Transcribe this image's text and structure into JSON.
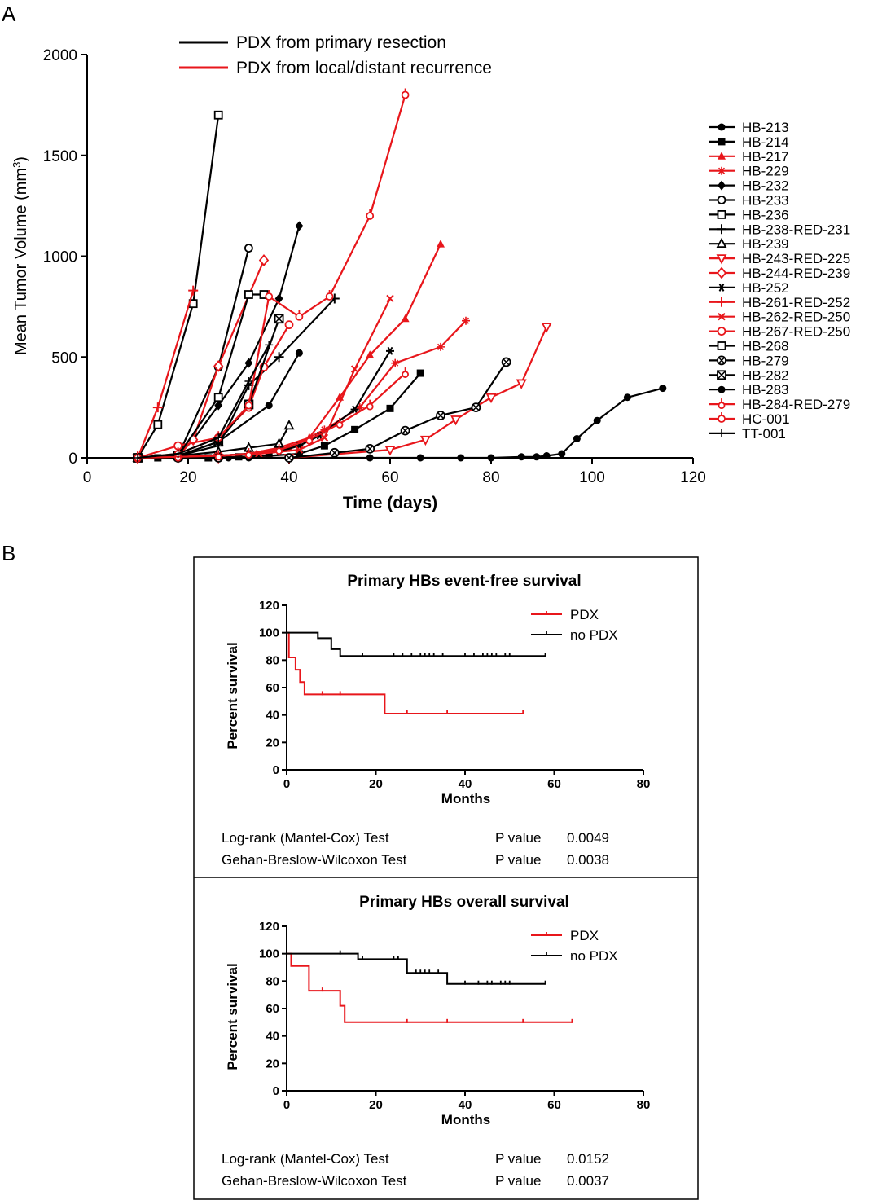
{
  "figure": {
    "panel_a_letter": "A",
    "panel_b_letter": "B"
  },
  "colors": {
    "black": "#000000",
    "red": "#e8161b"
  },
  "chart_data": [
    {
      "type": "line",
      "panel": "A",
      "xlabel": "Time (days)",
      "ylabel": "Mean Tumor Volume (mm3)",
      "ylabel_main": "Mean Tumor Volume (mm",
      "ylabel_sup": "3",
      "ylabel_close": ")",
      "xlim": [
        0,
        120
      ],
      "ylim": [
        0,
        2000
      ],
      "xticks": [
        "0",
        "20",
        "40",
        "60",
        "80",
        "100",
        "120"
      ],
      "yticks": [
        "0",
        "500",
        "1000",
        "1500",
        "2000"
      ],
      "legend_groups": [
        {
          "label": "PDX from primary resection",
          "color": "#000000"
        },
        {
          "label": "PDX from local/distant recurrence",
          "color": "#e8161b"
        }
      ],
      "series": [
        {
          "name": "HB-213",
          "color": "#000000",
          "marker": "circle-filled",
          "x": [
            10,
            14,
            18,
            24,
            28,
            32,
            40,
            56,
            66,
            74,
            80,
            86,
            89,
            91,
            94,
            97,
            101,
            107,
            114
          ],
          "y": [
            0,
            0,
            0,
            0,
            0,
            0,
            0,
            0,
            0,
            0,
            0,
            5,
            5,
            10,
            20,
            95,
            185,
            300,
            345
          ]
        },
        {
          "name": "HB-214",
          "color": "#000000",
          "marker": "square-filled",
          "x": [
            10,
            14,
            18,
            24,
            30,
            36,
            42,
            47,
            53,
            60,
            66
          ],
          "y": [
            0,
            0,
            0,
            0,
            5,
            10,
            20,
            60,
            140,
            245,
            420
          ]
        },
        {
          "name": "HB-217",
          "color": "#e8161b",
          "marker": "triangle-filled",
          "x": [
            10,
            18,
            26,
            32,
            38,
            44,
            50,
            56,
            63,
            70
          ],
          "y": [
            0,
            5,
            10,
            20,
            50,
            100,
            300,
            510,
            690,
            1060
          ]
        },
        {
          "name": "HB-229",
          "color": "#e8161b",
          "marker": "star",
          "x": [
            10,
            18,
            26,
            32,
            40,
            47,
            54,
            61,
            70,
            75
          ],
          "y": [
            0,
            5,
            10,
            20,
            50,
            140,
            250,
            470,
            550,
            680
          ]
        },
        {
          "name": "HB-232",
          "color": "#000000",
          "marker": "diamond-filled",
          "x": [
            10,
            18,
            21,
            26,
            32,
            38,
            42
          ],
          "y": [
            0,
            10,
            90,
            260,
            470,
            790,
            1150
          ]
        },
        {
          "name": "HB-233",
          "color": "#000000",
          "marker": "circle-open",
          "x": [
            10,
            18,
            26,
            32
          ],
          "y": [
            0,
            10,
            450,
            1040
          ]
        },
        {
          "name": "HB-236",
          "color": "#000000",
          "marker": "square-open",
          "x": [
            10,
            14,
            21,
            26
          ],
          "y": [
            0,
            165,
            765,
            1700
          ]
        },
        {
          "name": "HB-238-RED-231",
          "color": "#000000",
          "marker": "plus",
          "x": [
            10,
            18,
            26,
            32,
            38,
            49
          ],
          "y": [
            0,
            10,
            60,
            360,
            500,
            790
          ]
        },
        {
          "name": "HB-239",
          "color": "#000000",
          "marker": "triangle-open",
          "x": [
            10,
            18,
            26,
            32,
            38,
            40
          ],
          "y": [
            0,
            10,
            30,
            50,
            70,
            160
          ]
        },
        {
          "name": "HB-243-RED-225",
          "color": "#e8161b",
          "marker": "triangle-down-open",
          "x": [
            10,
            18,
            26,
            40,
            60,
            67,
            73,
            80,
            86,
            91
          ],
          "y": [
            0,
            0,
            0,
            0,
            40,
            90,
            190,
            300,
            370,
            650
          ]
        },
        {
          "name": "HB-244-RED-239",
          "color": "#e8161b",
          "marker": "diamond-open",
          "x": [
            10,
            18,
            21,
            26,
            35
          ],
          "y": [
            0,
            10,
            90,
            455,
            980
          ]
        },
        {
          "name": "HB-252",
          "color": "#000000",
          "marker": "asterisk",
          "x": [
            10,
            18,
            26,
            32,
            38,
            42,
            46,
            53,
            60
          ],
          "y": [
            0,
            5,
            10,
            20,
            30,
            60,
            110,
            240,
            530
          ]
        },
        {
          "name": "HB-261-RED-252",
          "color": "#e8161b",
          "marker": "plus",
          "x": [
            10,
            14,
            21
          ],
          "y": [
            0,
            250,
            830
          ]
        },
        {
          "name": "HB-262-RED-250",
          "color": "#e8161b",
          "marker": "x",
          "x": [
            10,
            18,
            26,
            34,
            42,
            47,
            53,
            60
          ],
          "y": [
            0,
            5,
            10,
            20,
            40,
            100,
            440,
            790
          ]
        },
        {
          "name": "HB-267-RED-250",
          "color": "#e8161b",
          "marker": "circle-open",
          "x": [
            10,
            18,
            26,
            32,
            35,
            40
          ],
          "y": [
            0,
            60,
            100,
            250,
            450,
            660
          ]
        },
        {
          "name": "HB-268",
          "color": "#000000",
          "marker": "square-open",
          "x": [
            10,
            18,
            26,
            32,
            35
          ],
          "y": [
            0,
            10,
            300,
            810,
            810
          ]
        },
        {
          "name": "HB-279",
          "color": "#000000",
          "marker": "circle-cross",
          "x": [
            10,
            18,
            26,
            40,
            49,
            56,
            63,
            70,
            77,
            83
          ],
          "y": [
            0,
            0,
            0,
            0,
            25,
            45,
            135,
            210,
            250,
            475
          ]
        },
        {
          "name": "HB-282",
          "color": "#000000",
          "marker": "square-cross",
          "x": [
            10,
            18,
            26,
            32,
            38
          ],
          "y": [
            0,
            10,
            80,
            265,
            690
          ]
        },
        {
          "name": "HB-283",
          "color": "#000000",
          "marker": "circle-filled",
          "x": [
            10,
            18,
            26,
            36,
            42
          ],
          "y": [
            0,
            10,
            80,
            260,
            520
          ]
        },
        {
          "name": "HB-284-RED-279",
          "color": "#e8161b",
          "marker": "lollipop",
          "x": [
            10,
            18,
            26,
            32,
            38,
            44,
            50,
            56,
            63
          ],
          "y": [
            0,
            5,
            10,
            20,
            40,
            90,
            170,
            260,
            420
          ]
        },
        {
          "name": "HC-001",
          "color": "#e8161b",
          "marker": "circle-open-tick",
          "x": [
            10,
            18,
            26,
            32,
            36,
            42,
            48,
            56,
            63
          ],
          "y": [
            0,
            20,
            100,
            260,
            800,
            700,
            800,
            1200,
            1800
          ]
        },
        {
          "name": "TT-001",
          "color": "#000000",
          "marker": "tee",
          "x": [
            10,
            18,
            26,
            32,
            36
          ],
          "y": [
            0,
            20,
            100,
            380,
            560
          ]
        }
      ]
    },
    {
      "type": "line",
      "panel": "B-top",
      "title": "Primary HBs event-free survival",
      "xlabel": "Months",
      "ylabel": "Percent survival",
      "xlim": [
        0,
        80
      ],
      "ylim": [
        0,
        120
      ],
      "xticks": [
        "0",
        "20",
        "40",
        "60",
        "80"
      ],
      "yticks": [
        "0",
        "20",
        "40",
        "60",
        "80",
        "100",
        "120"
      ],
      "series": [
        {
          "name": "PDX",
          "color": "#e8161b",
          "x": [
            0,
            0.5,
            2,
            3,
            4,
            5,
            22,
            53
          ],
          "y": [
            100,
            82,
            73,
            64,
            55,
            55,
            41,
            41
          ],
          "censor_x": [
            8,
            12,
            27,
            36,
            53
          ]
        },
        {
          "name": "no PDX",
          "color": "#000000",
          "x": [
            0,
            7,
            10,
            12,
            58
          ],
          "y": [
            100,
            96,
            88,
            83,
            83
          ],
          "censor_x": [
            17,
            24,
            26,
            28,
            30,
            31,
            32,
            33,
            35,
            40,
            42,
            44,
            45,
            46,
            47,
            49,
            50,
            58
          ]
        }
      ],
      "stats": [
        {
          "test": "Log-rank (Mantel-Cox) Test",
          "p_label": "P value",
          "p_value": "0.0049"
        },
        {
          "test": "Gehan-Breslow-Wilcoxon Test",
          "p_label": "P value",
          "p_value": "0.0038"
        }
      ]
    },
    {
      "type": "line",
      "panel": "B-bottom",
      "title": "Primary HBs overall survival",
      "xlabel": "Months",
      "ylabel": "Percent survival",
      "xlim": [
        0,
        80
      ],
      "ylim": [
        0,
        120
      ],
      "xticks": [
        "0",
        "20",
        "40",
        "60",
        "80"
      ],
      "yticks": [
        "0",
        "20",
        "40",
        "60",
        "80",
        "100",
        "120"
      ],
      "series": [
        {
          "name": "PDX",
          "color": "#e8161b",
          "x": [
            0,
            1,
            5,
            12,
            13,
            64
          ],
          "y": [
            100,
            91,
            73,
            62,
            50,
            50
          ],
          "censor_x": [
            8,
            27,
            36,
            53,
            64
          ]
        },
        {
          "name": "no PDX",
          "color": "#000000",
          "x": [
            0,
            16,
            27,
            36,
            58
          ],
          "y": [
            100,
            96,
            86,
            78,
            78
          ],
          "censor_x": [
            12,
            17,
            24,
            25,
            29,
            30,
            31,
            32,
            34,
            40,
            43,
            45,
            46,
            48,
            49,
            50,
            58
          ]
        }
      ],
      "stats": [
        {
          "test": "Log-rank (Mantel-Cox) Test",
          "p_label": "P value",
          "p_value": "0.0152"
        },
        {
          "test": "Gehan-Breslow-Wilcoxon Test",
          "p_label": "P value",
          "p_value": "0.0037"
        }
      ]
    }
  ]
}
